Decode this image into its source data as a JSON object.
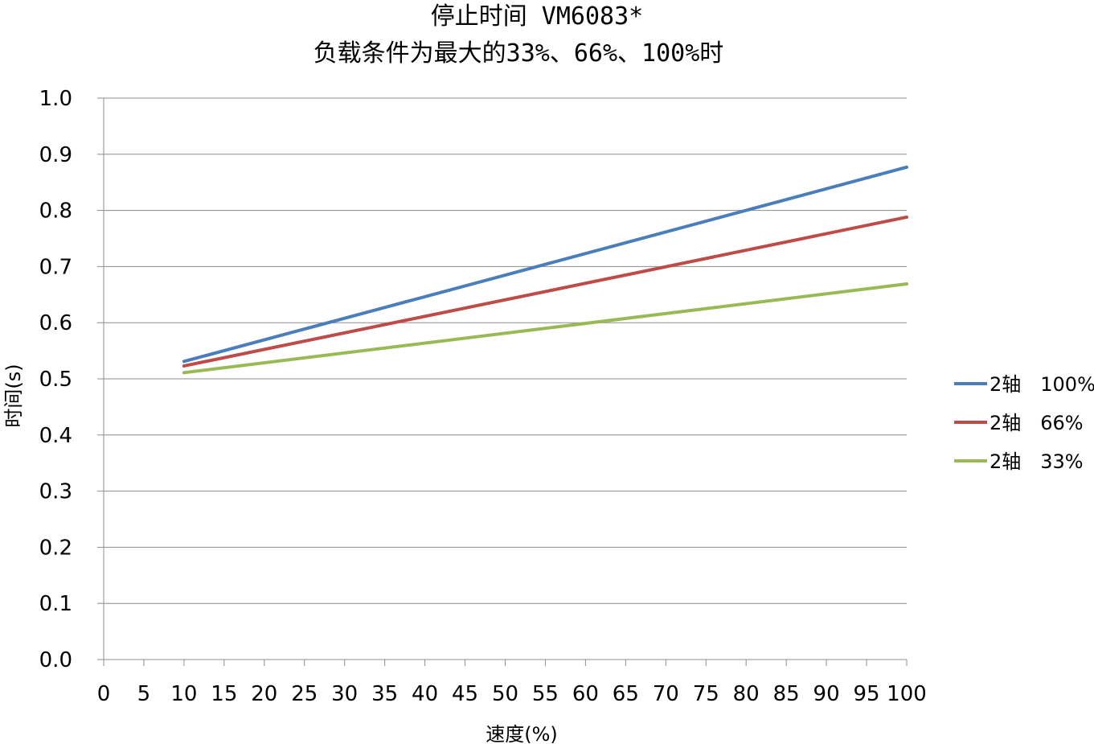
{
  "chart_data": {
    "type": "line",
    "title": "停止时间 VM6083*",
    "subtitle": "负载条件为最大的33%、66%、100%时",
    "xlabel": "速度(%)",
    "ylabel": "时间(s)",
    "xlim": [
      0,
      100
    ],
    "ylim": [
      0,
      1.0
    ],
    "x_ticks": [
      "0",
      "5",
      "10",
      "15",
      "20",
      "25",
      "30",
      "35",
      "40",
      "45",
      "50",
      "55",
      "60",
      "65",
      "70",
      "75",
      "80",
      "85",
      "90",
      "95",
      "100"
    ],
    "y_ticks": [
      "0.0",
      "0.1",
      "0.2",
      "0.3",
      "0.4",
      "0.5",
      "0.6",
      "0.7",
      "0.8",
      "0.9",
      "1.0"
    ],
    "grid": "horizontal",
    "legend_position": "right",
    "x": [
      10,
      100
    ],
    "series": [
      {
        "name": "2轴　100%",
        "color": "#4a7ebb",
        "values": [
          0.531,
          0.877
        ]
      },
      {
        "name": "2轴　66%",
        "color": "#be4b48",
        "values": [
          0.523,
          0.788
        ]
      },
      {
        "name": "2轴　33%",
        "color": "#98b954",
        "values": [
          0.511,
          0.669
        ]
      }
    ]
  }
}
